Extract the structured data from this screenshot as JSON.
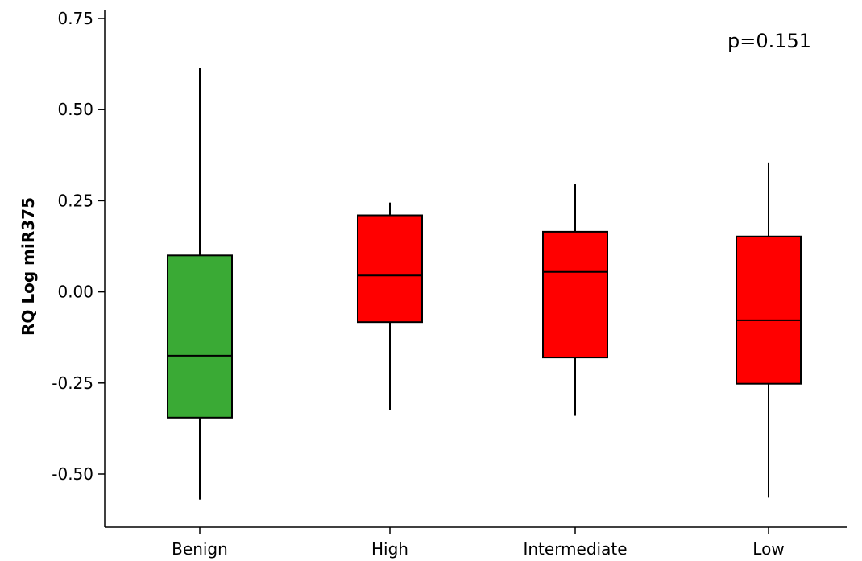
{
  "colors": {
    "benign": "#3aaa35",
    "cancer": "#ff0000",
    "stroke": "#000000",
    "background": "#ffffff"
  },
  "chart_data": {
    "type": "box",
    "title": "",
    "xlabel": "",
    "ylabel": "RQ Log miR375",
    "annotation": "p=0.151",
    "ylim": [
      -0.6,
      0.75
    ],
    "yticks": [
      0.75,
      0.5,
      0.25,
      0.0,
      -0.25,
      -0.5
    ],
    "ytick_labels": [
      "0.75",
      "0.50",
      "0.25",
      "0.00",
      "-0.25",
      "-0.50"
    ],
    "categories": [
      "Benign",
      "High",
      "Intermediate",
      "Low"
    ],
    "boxes": [
      {
        "category": "Benign",
        "min": -0.57,
        "q1": -0.345,
        "median": -0.175,
        "q3": 0.1,
        "max": 0.615,
        "color": "#3aaa35"
      },
      {
        "category": "High",
        "min": -0.325,
        "q1": -0.083,
        "median": 0.045,
        "q3": 0.21,
        "max": 0.245,
        "color": "#ff0000"
      },
      {
        "category": "Intermediate",
        "min": -0.34,
        "q1": -0.18,
        "median": 0.055,
        "q3": 0.165,
        "max": 0.295,
        "color": "#ff0000"
      },
      {
        "category": "Low",
        "min": -0.565,
        "q1": -0.252,
        "median": -0.078,
        "q3": 0.152,
        "max": 0.355,
        "color": "#ff0000"
      }
    ]
  }
}
